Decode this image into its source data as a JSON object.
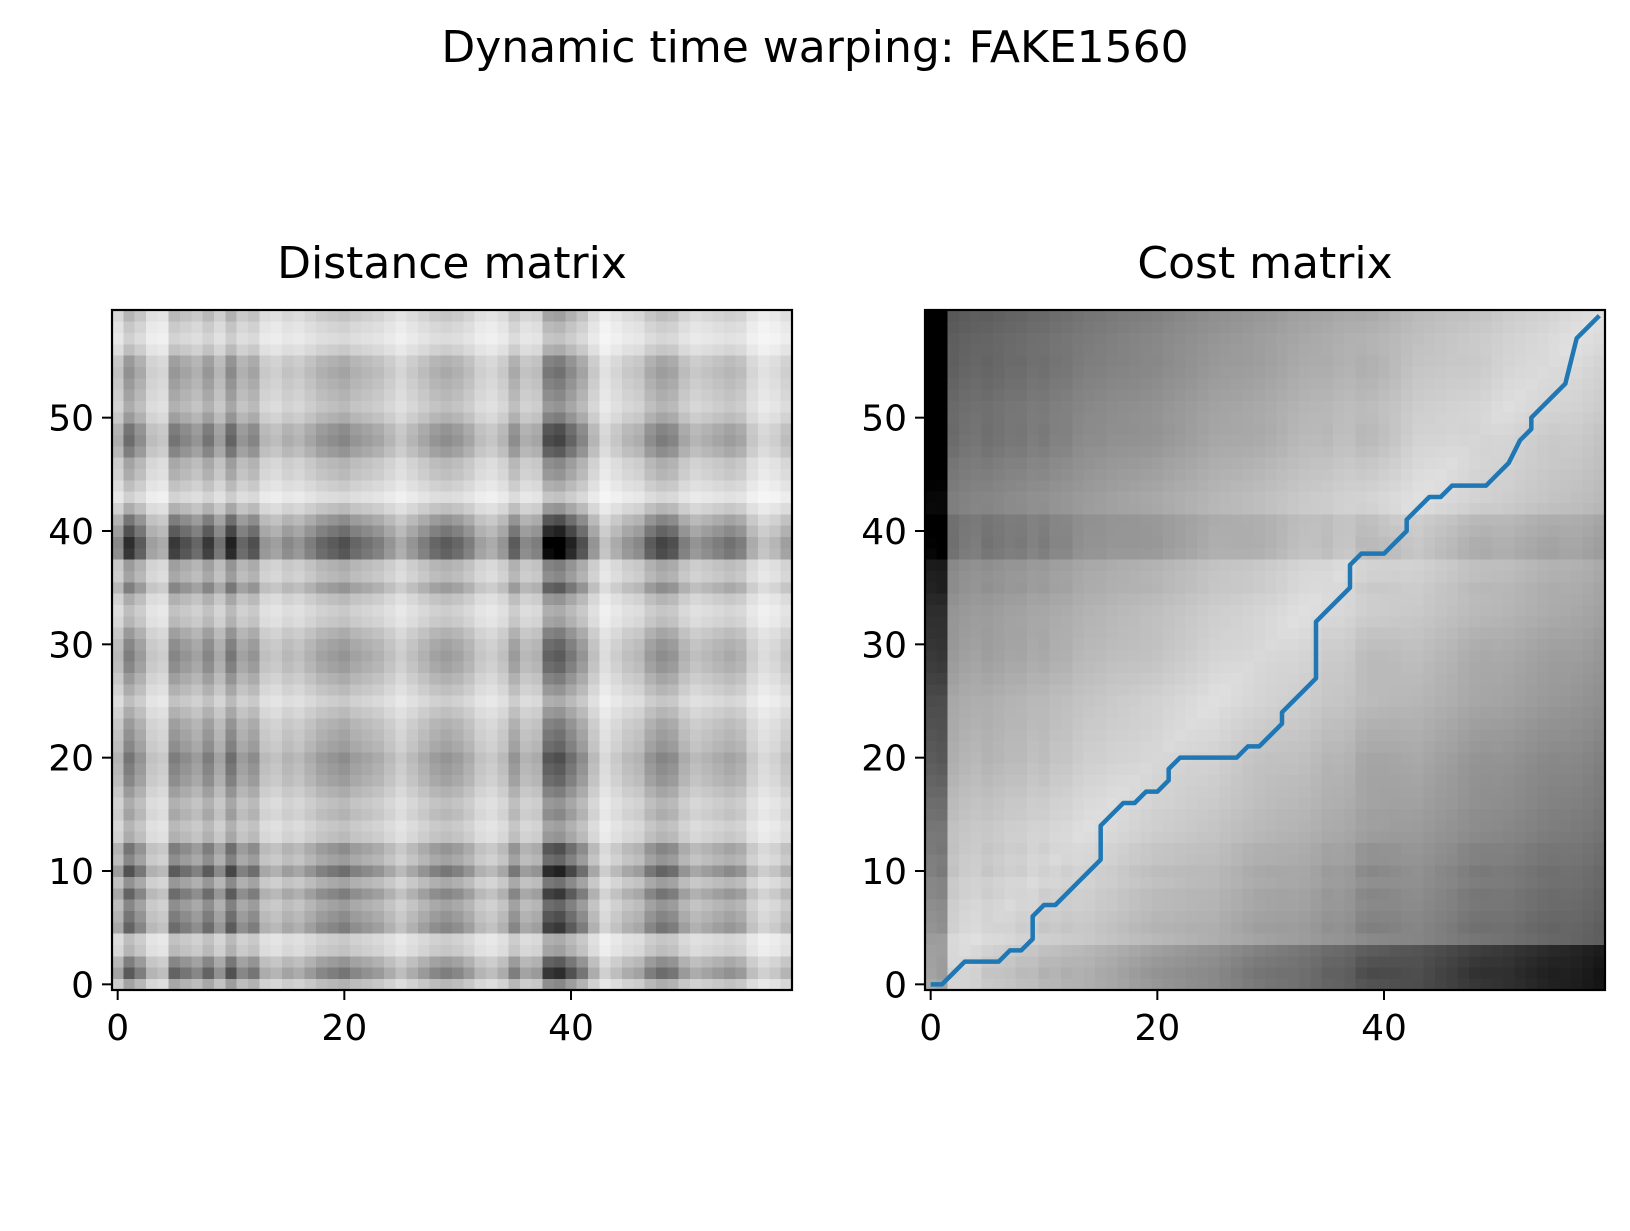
{
  "figure": {
    "suptitle": "Dynamic time warping: FAKE1560"
  },
  "chart_data": [
    {
      "type": "heatmap",
      "title": "Distance matrix",
      "xlabel": "",
      "ylabel": "",
      "size": [
        60,
        60
      ],
      "colormap": "gray_r",
      "origin": "lower",
      "xlim": [
        -0.5,
        59.5
      ],
      "ylim": [
        -0.5,
        59.5
      ],
      "xticks": [
        0,
        20,
        40
      ],
      "yticks": [
        0,
        10,
        20,
        30,
        40,
        50
      ],
      "profile": [
        0.35,
        0.75,
        0.55,
        0.25,
        0.2,
        0.7,
        0.6,
        0.5,
        0.7,
        0.45,
        0.8,
        0.5,
        0.6,
        0.3,
        0.25,
        0.35,
        0.3,
        0.4,
        0.5,
        0.55,
        0.6,
        0.5,
        0.45,
        0.4,
        0.3,
        0.2,
        0.3,
        0.4,
        0.5,
        0.55,
        0.5,
        0.4,
        0.25,
        0.2,
        0.3,
        0.55,
        0.35,
        0.4,
        0.95,
        1.0,
        0.8,
        0.6,
        0.3,
        0.1,
        0.2,
        0.3,
        0.35,
        0.55,
        0.65,
        0.6,
        0.4,
        0.3,
        0.35,
        0.4,
        0.45,
        0.4,
        0.2,
        0.1,
        0.15,
        0.25
      ]
    },
    {
      "type": "heatmap",
      "title": "Cost matrix",
      "xlabel": "",
      "ylabel": "",
      "size": [
        60,
        60
      ],
      "colormap": "gray_r",
      "origin": "lower",
      "xlim": [
        -0.5,
        59.5
      ],
      "ylim": [
        -0.5,
        59.5
      ],
      "xticks": [
        0,
        20,
        40
      ],
      "yticks": [
        0,
        10,
        20,
        30,
        40,
        50
      ],
      "path_color": "#1f77b4",
      "warping_path": {
        "x": [
          0,
          1,
          2,
          3,
          4,
          5,
          6,
          7,
          8,
          9,
          9,
          10,
          11,
          12,
          13,
          14,
          15,
          15,
          16,
          17,
          18,
          19,
          20,
          21,
          21,
          22,
          23,
          24,
          25,
          26,
          27,
          28,
          29,
          30,
          31,
          31,
          32,
          33,
          34,
          34,
          35,
          36,
          37,
          37,
          38,
          39,
          40,
          41,
          42,
          42,
          43,
          44,
          45,
          46,
          47,
          48,
          49,
          50,
          51,
          52,
          53,
          53,
          54,
          55,
          56,
          57,
          58,
          59
        ],
        "y": [
          0,
          0,
          1,
          2,
          2,
          2,
          2,
          3,
          3,
          4,
          6,
          7,
          7,
          8,
          9,
          10,
          11,
          14,
          15,
          16,
          16,
          17,
          17,
          18,
          19,
          20,
          20,
          20,
          20,
          20,
          20,
          21,
          21,
          22,
          23,
          24,
          25,
          26,
          27,
          32,
          33,
          34,
          35,
          37,
          38,
          38,
          38,
          39,
          40,
          41,
          42,
          43,
          43,
          44,
          44,
          44,
          44,
          45,
          46,
          48,
          49,
          50,
          51,
          52,
          53,
          57,
          58,
          59
        ]
      }
    }
  ]
}
